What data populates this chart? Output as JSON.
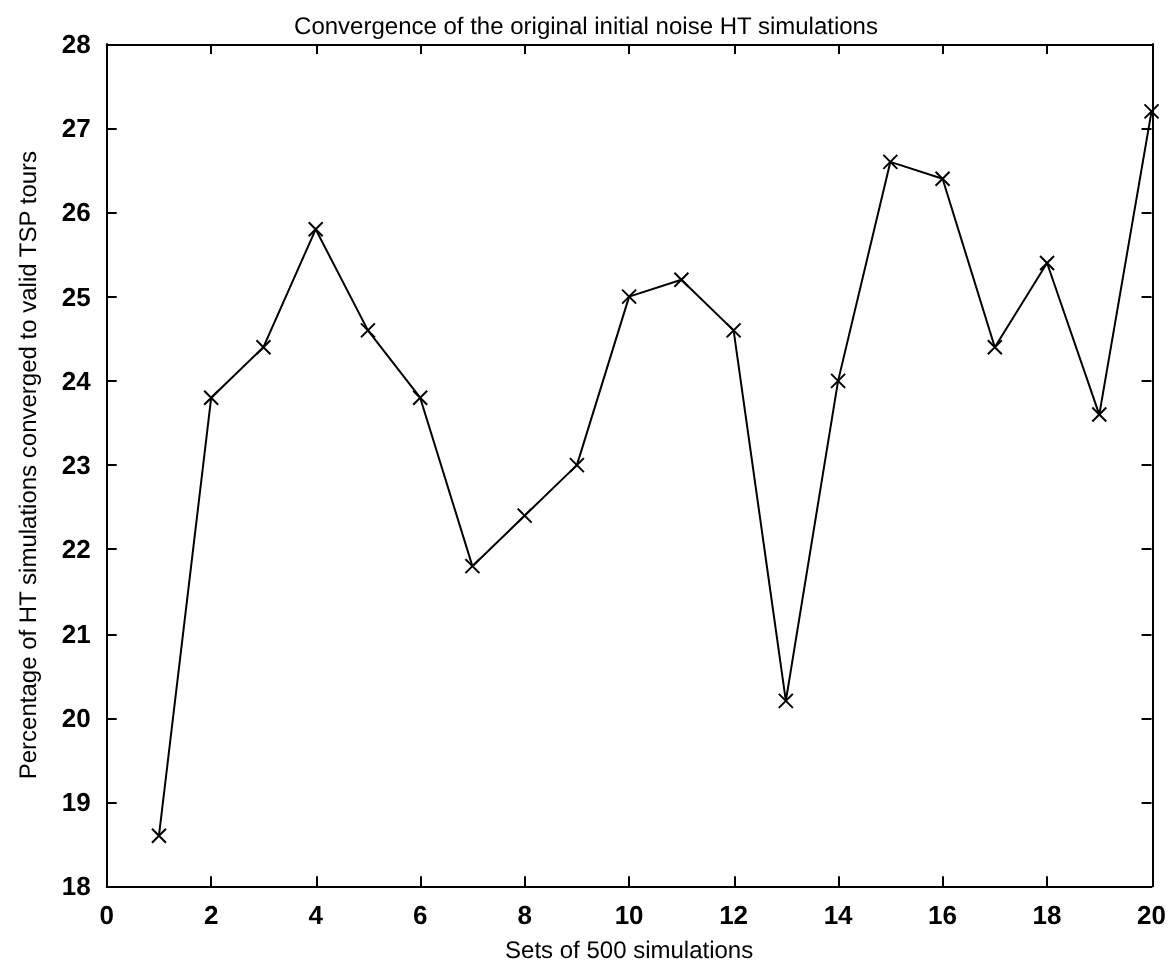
{
  "chart_data": {
    "type": "line",
    "title": "Convergence of the original initial noise HT simulations",
    "xlabel": "Sets of 500 simulations",
    "ylabel": "Percentage of HT simulations converged to valid TSP tours",
    "x": [
      1,
      2,
      3,
      4,
      5,
      6,
      7,
      8,
      9,
      10,
      11,
      12,
      13,
      14,
      15,
      16,
      17,
      18,
      19,
      20
    ],
    "series": [
      {
        "color": "#000000",
        "values": [
          18.6,
          23.8,
          24.4,
          25.8,
          24.6,
          23.8,
          21.8,
          22.4,
          23.0,
          25.0,
          25.2,
          24.6,
          20.2,
          24.0,
          26.6,
          26.4,
          24.4,
          25.4,
          23.6,
          27.2
        ]
      }
    ],
    "xlim": [
      0,
      20
    ],
    "xticks": [
      0,
      2,
      4,
      6,
      8,
      10,
      12,
      14,
      16,
      18,
      20
    ],
    "ylim": [
      18,
      28
    ],
    "yticks": [
      18,
      19,
      20,
      21,
      22,
      23,
      24,
      25,
      26,
      27,
      28
    ],
    "grid": false,
    "marker": "cross",
    "line_style": "solid"
  }
}
